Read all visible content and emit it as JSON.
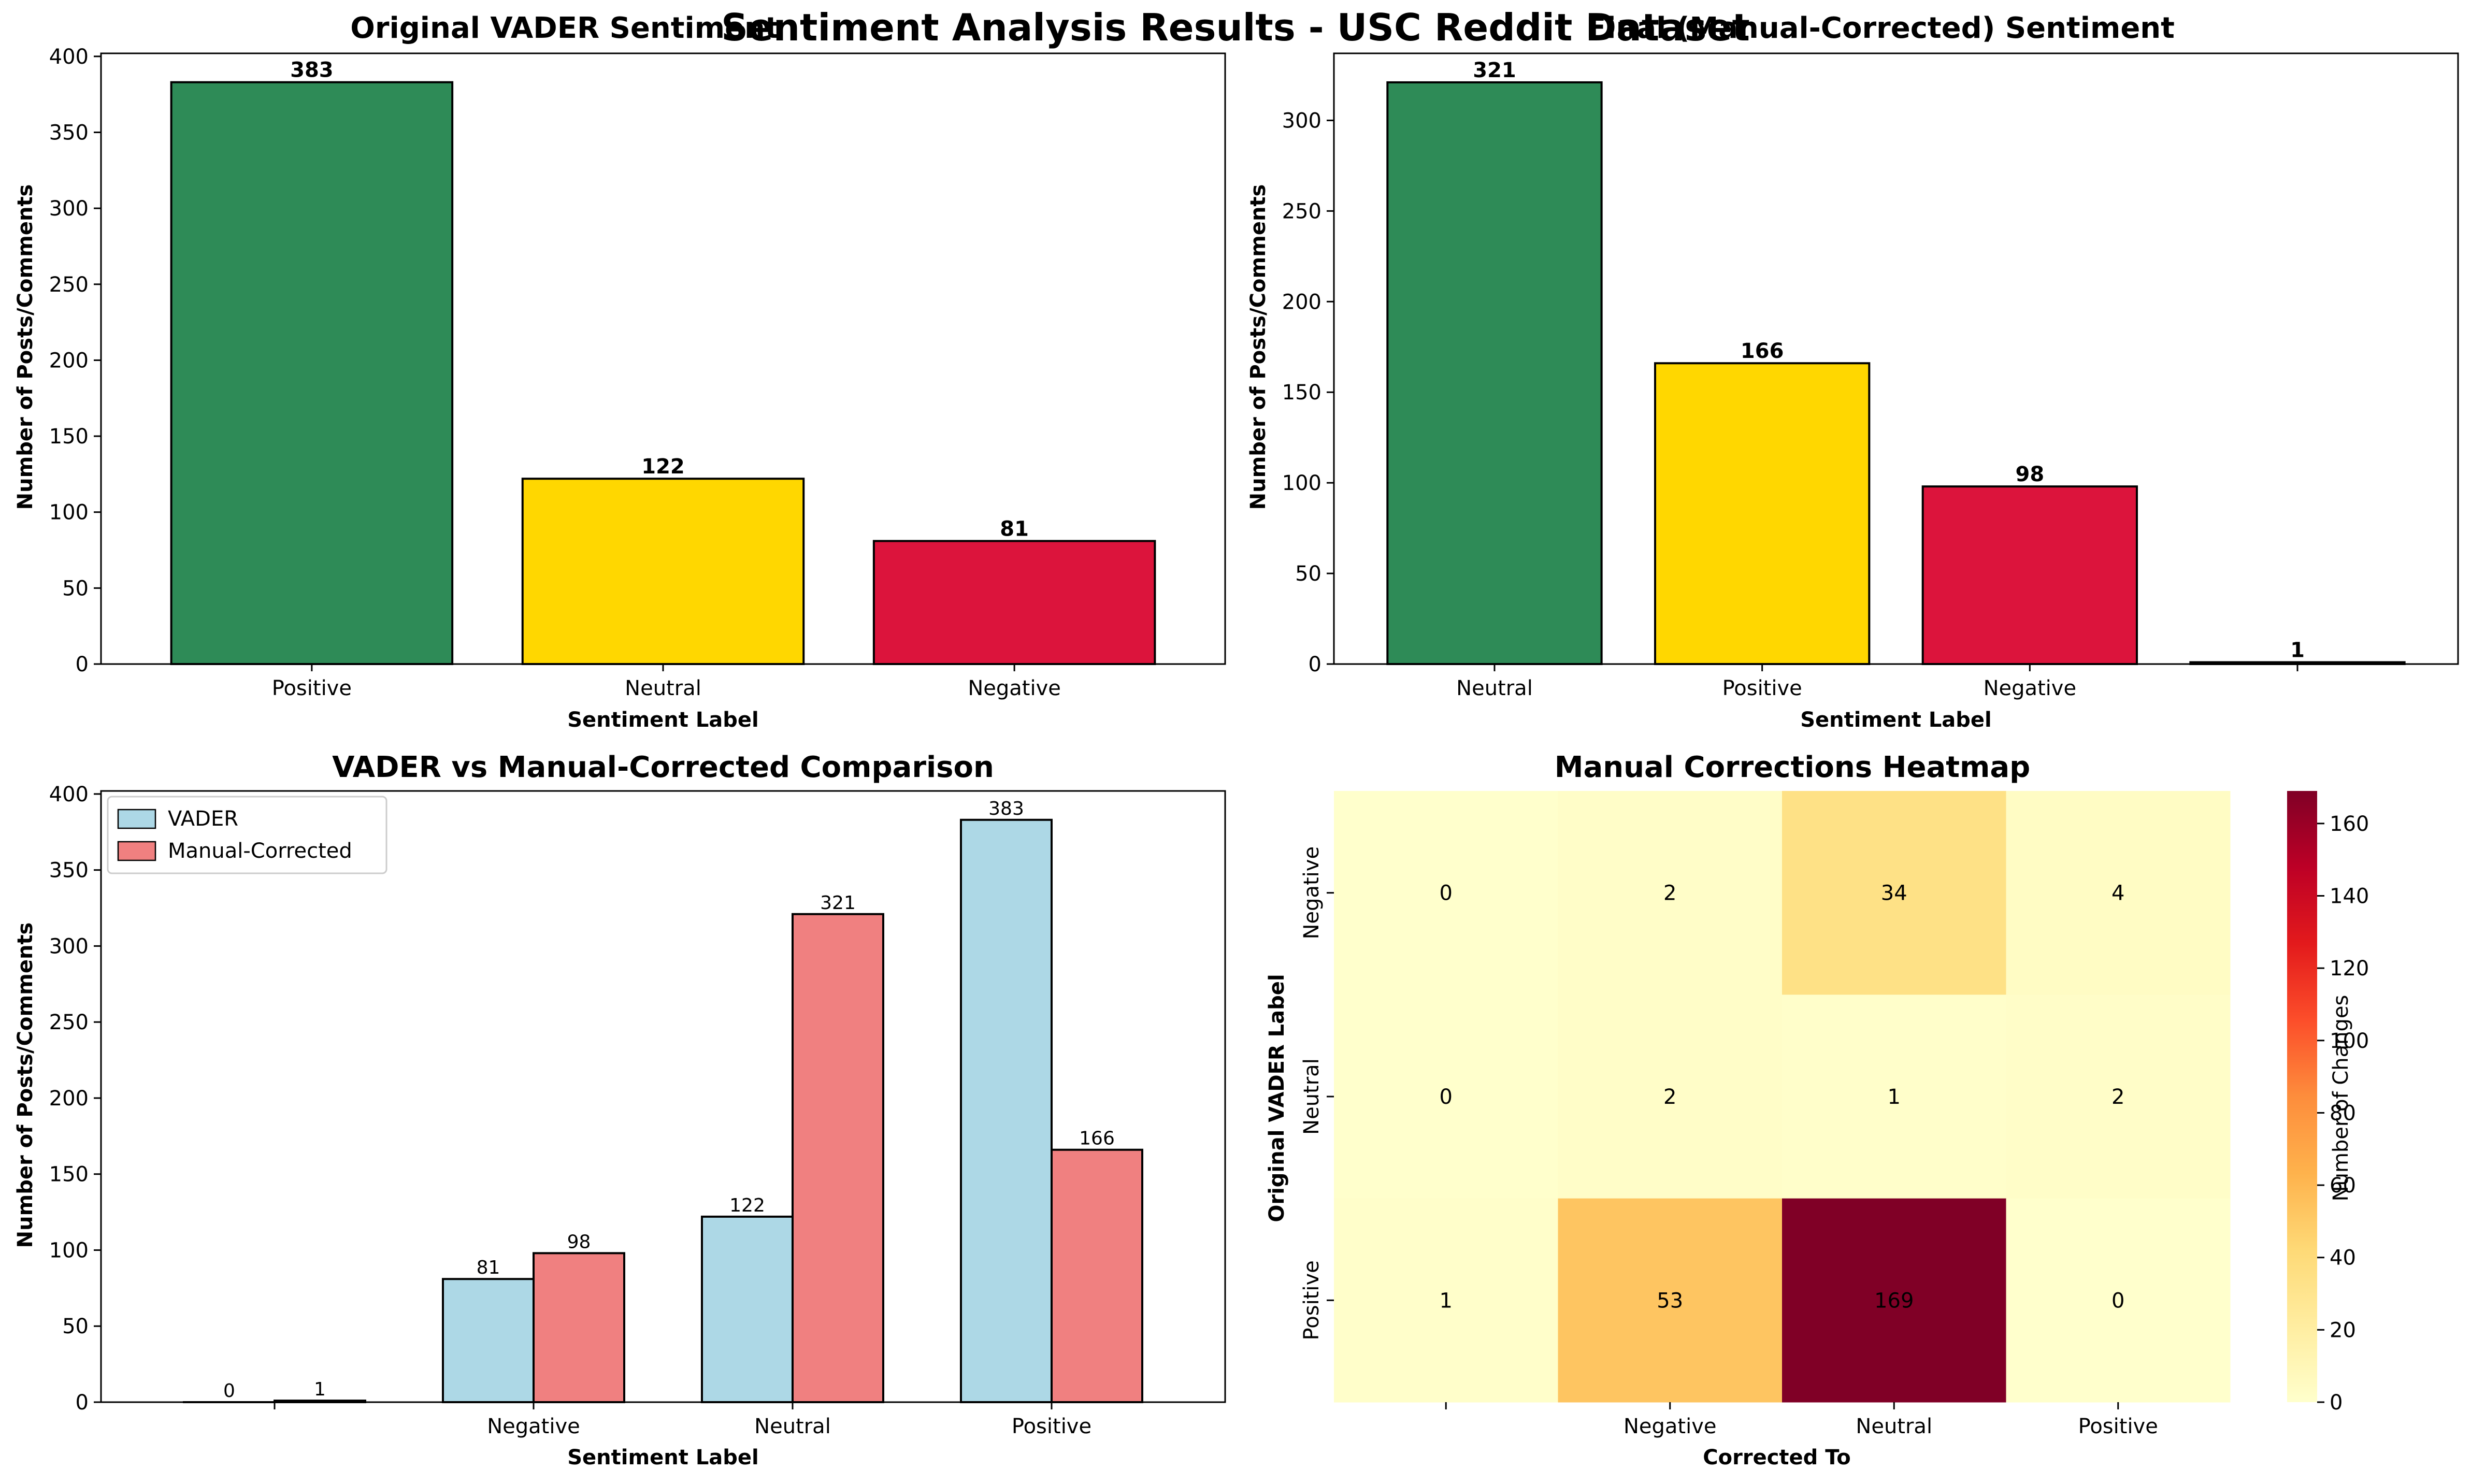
{
  "figure": {
    "suptitle": "Sentiment Analysis Results - USC Reddit Dataset"
  },
  "chart_data": [
    {
      "type": "bar",
      "title": "Original VADER Sentiment",
      "xlabel": "Sentiment Label",
      "ylabel": "Number of Posts/Comments",
      "categories": [
        "Positive",
        "Neutral",
        "Negative"
      ],
      "values": [
        383,
        122,
        81
      ],
      "data_labels": [
        "383",
        "122",
        "81"
      ],
      "colors": [
        "#2e8b57",
        "#ffd700",
        "#dc143c"
      ],
      "ylim": [
        0,
        402
      ],
      "yticks": [
        0,
        50,
        100,
        150,
        200,
        250,
        300,
        350,
        400
      ],
      "grid": false
    },
    {
      "type": "bar",
      "title": "Final (Manual-Corrected) Sentiment",
      "xlabel": "Sentiment Label",
      "ylabel": "Number of Posts/Comments",
      "categories": [
        "Neutral",
        "Positive",
        "Negative",
        ""
      ],
      "values": [
        321,
        166,
        98,
        1
      ],
      "data_labels": [
        "321",
        "166",
        "98",
        "1"
      ],
      "colors": [
        "#2e8b57",
        "#ffd700",
        "#dc143c",
        "#2e8b57"
      ],
      "ylim": [
        0,
        337
      ],
      "yticks": [
        0,
        50,
        100,
        150,
        200,
        250,
        300
      ],
      "grid": false
    },
    {
      "type": "bar",
      "title": "VADER vs Manual-Corrected Comparison",
      "xlabel": "Sentiment Label",
      "ylabel": "Number of Posts/Comments",
      "categories": [
        "",
        "Negative",
        "Neutral",
        "Positive"
      ],
      "series": [
        {
          "name": "VADER",
          "values": [
            0,
            81,
            122,
            383
          ],
          "color": "#add8e6"
        },
        {
          "name": "Manual-Corrected",
          "values": [
            1,
            98,
            321,
            166
          ],
          "color": "#f08080"
        }
      ],
      "ylim": [
        0,
        402
      ],
      "yticks": [
        0,
        50,
        100,
        150,
        200,
        250,
        300,
        350,
        400
      ],
      "legend": "top-left",
      "grid": false
    },
    {
      "type": "heatmap",
      "title": "Manual Corrections Heatmap",
      "xlabel": "Corrected To",
      "ylabel": "Original VADER Label",
      "x_categories": [
        "",
        "Negative",
        "Neutral",
        "Positive"
      ],
      "y_categories": [
        "Negative",
        "Neutral",
        "Positive"
      ],
      "values": [
        [
          0,
          2,
          34,
          4
        ],
        [
          0,
          2,
          1,
          2
        ],
        [
          1,
          53,
          169,
          0
        ]
      ],
      "colormap": "YlOrRd",
      "vmin": 0,
      "vmax": 169,
      "colorbar_label": "Number of Changes",
      "colorbar_ticks": [
        0,
        20,
        40,
        60,
        80,
        100,
        120,
        140,
        160
      ]
    }
  ]
}
